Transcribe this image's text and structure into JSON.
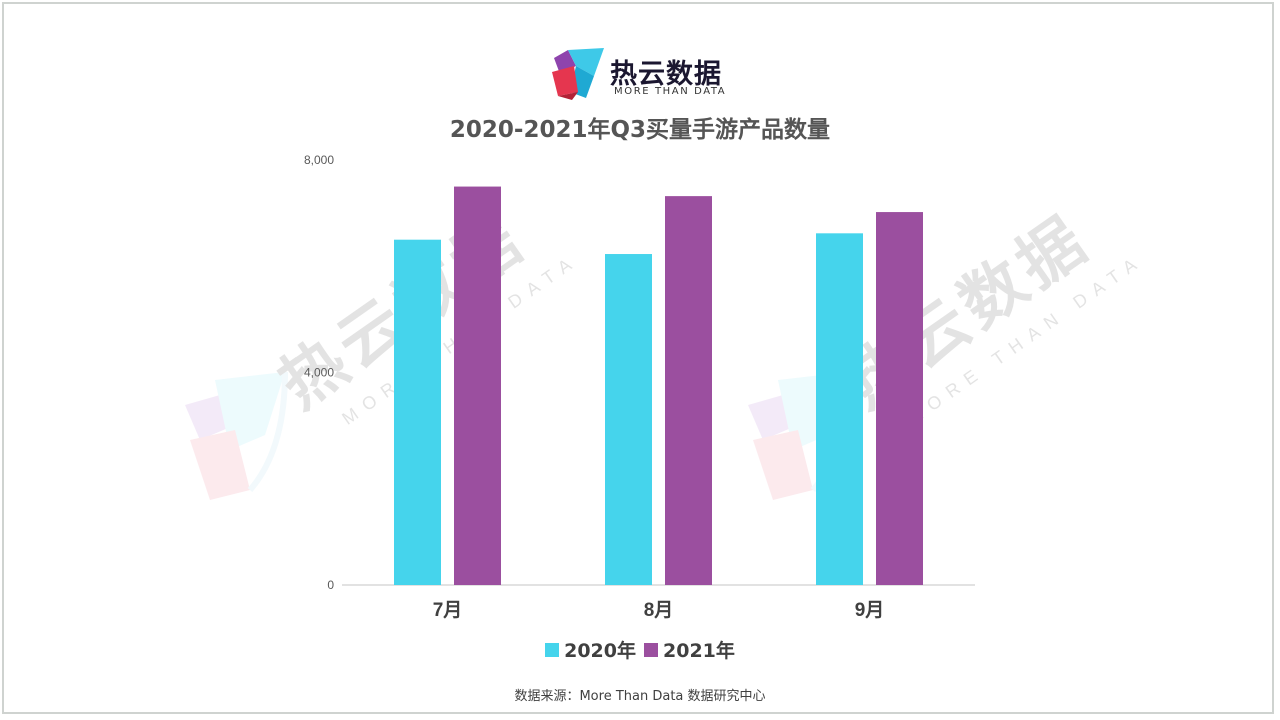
{
  "header": {
    "logo_text": "热云数据",
    "logo_subtext": "MORE THAN DATA"
  },
  "chart_data": {
    "type": "bar",
    "title": "2020-2021年Q3买量手游产品数量",
    "categories": [
      "7月",
      "8月",
      "9月"
    ],
    "series": [
      {
        "name": "2020年",
        "color": "#45d4ec",
        "values": [
          6500,
          6230,
          6620
        ]
      },
      {
        "name": "2021年",
        "color": "#9b4f9f",
        "values": [
          7500,
          7320,
          7020
        ]
      }
    ],
    "ylim": [
      0,
      8000
    ],
    "yticks": [
      "0",
      "4,000",
      "8,000"
    ],
    "ytick_values": [
      0,
      4000,
      8000
    ],
    "grid": false,
    "legend_position": "bottom"
  },
  "footer": {
    "source": "数据来源：More Than Data 数据研究中心"
  },
  "colors": {
    "brand_cyan": "#45d4ec",
    "brand_purple": "#9b4f9f",
    "brand_red": "#e5364f",
    "axis": "#d9d9d9"
  }
}
